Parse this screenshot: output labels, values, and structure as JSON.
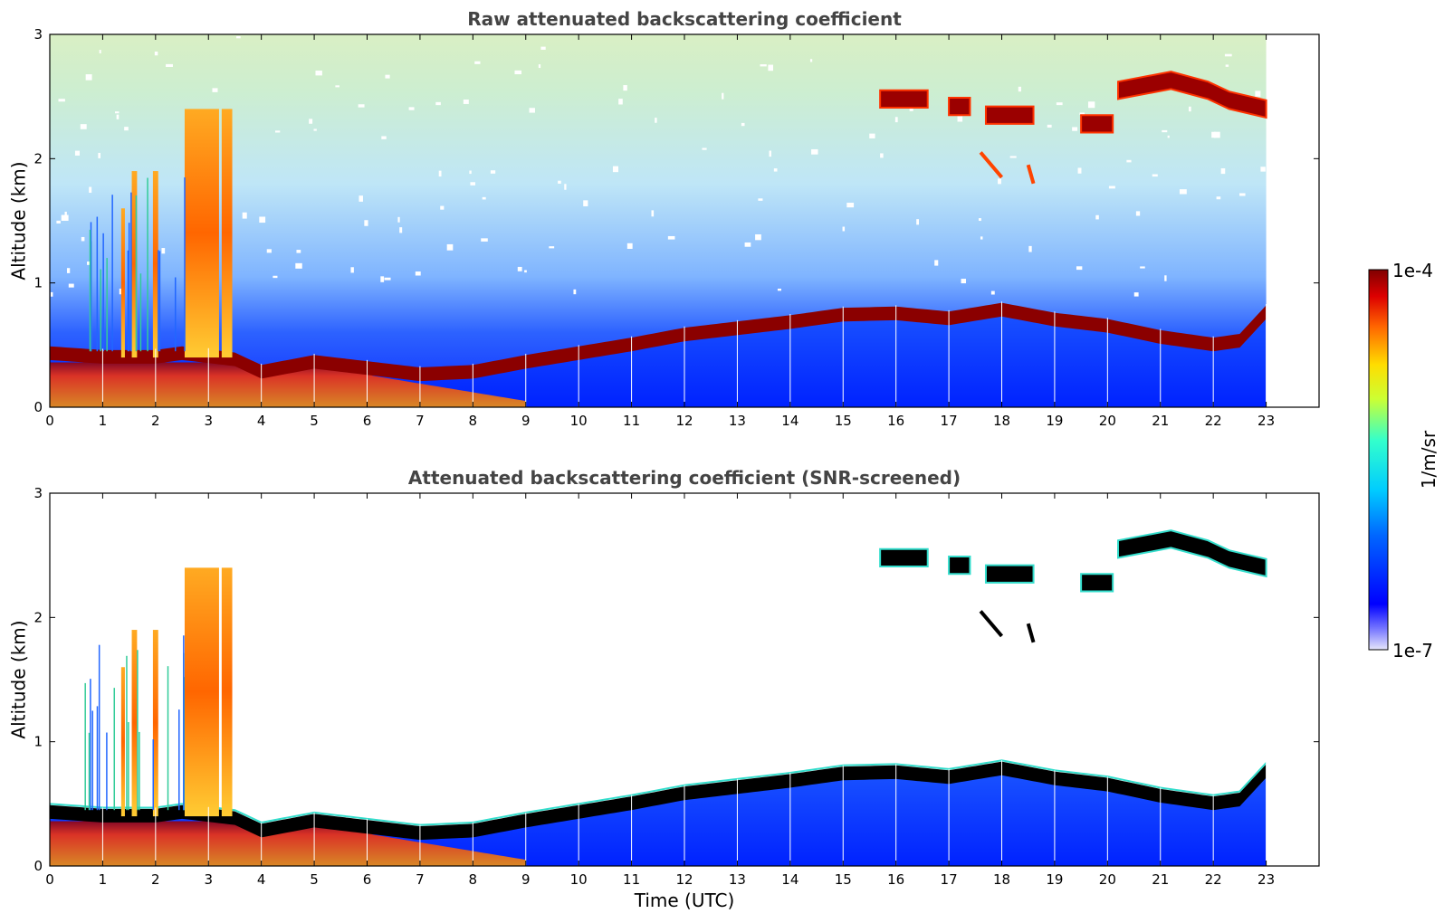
{
  "chart_data": [
    {
      "type": "heatmap",
      "title": "Raw attenuated backscattering coefficient",
      "xlabel": "",
      "ylabel": "Altitude (km)",
      "xlim": [
        0,
        24
      ],
      "ylim": [
        0,
        3
      ],
      "xticks": [
        "0",
        "1",
        "2",
        "3",
        "4",
        "5",
        "6",
        "7",
        "8",
        "9",
        "10",
        "11",
        "12",
        "13",
        "14",
        "15",
        "16",
        "17",
        "18",
        "19",
        "20",
        "21",
        "22",
        "23"
      ],
      "yticks": [
        "0",
        "1",
        "2",
        "3"
      ],
      "data_time_range": [
        0,
        23
      ],
      "layers": [
        {
          "name": "boundary layer top",
          "points": [
            [
              0,
              0.45
            ],
            [
              1,
              0.42
            ],
            [
              2,
              0.42
            ],
            [
              2.5,
              0.45
            ],
            [
              3.5,
              0.4
            ],
            [
              4,
              0.3
            ],
            [
              5,
              0.38
            ],
            [
              6,
              0.33
            ],
            [
              7,
              0.28
            ],
            [
              8,
              0.3
            ],
            [
              9,
              0.38
            ],
            [
              10,
              0.45
            ],
            [
              11,
              0.52
            ],
            [
              12,
              0.6
            ],
            [
              13,
              0.65
            ],
            [
              14,
              0.7
            ],
            [
              15,
              0.76
            ],
            [
              16,
              0.77
            ],
            [
              17,
              0.73
            ],
            [
              18,
              0.8
            ],
            [
              19,
              0.72
            ],
            [
              20,
              0.67
            ],
            [
              21,
              0.58
            ],
            [
              22,
              0.52
            ],
            [
              22.5,
              0.55
            ],
            [
              23,
              0.78
            ]
          ]
        },
        {
          "name": "elevated layer 1",
          "points": [
            [
              15.7,
              2.48
            ],
            [
              16.6,
              2.48
            ]
          ]
        },
        {
          "name": "elevated layer 2",
          "points": [
            [
              17,
              2.42
            ],
            [
              17.4,
              2.42
            ]
          ]
        },
        {
          "name": "elevated layer 3",
          "points": [
            [
              17.7,
              2.35
            ],
            [
              18.6,
              2.35
            ]
          ]
        },
        {
          "name": "elevated layer 4",
          "points": [
            [
              19.5,
              2.28
            ],
            [
              20.1,
              2.28
            ]
          ]
        },
        {
          "name": "elevated layer 5",
          "points": [
            [
              20.2,
              2.55
            ],
            [
              21.2,
              2.63
            ],
            [
              21.9,
              2.55
            ],
            [
              22.3,
              2.47
            ],
            [
              23,
              2.4
            ]
          ]
        }
      ],
      "colorscale": {
        "max_label": "1e-4",
        "min_label": "1e-7",
        "unit_label": "1/m/sr",
        "colormap": "jet"
      }
    },
    {
      "type": "heatmap",
      "title": "Attenuated backscattering coefficient (SNR-screened)",
      "xlabel": "Time (UTC)",
      "ylabel": "Altitude (km)",
      "xlim": [
        0,
        24
      ],
      "ylim": [
        0,
        3
      ],
      "xticks": [
        "0",
        "1",
        "2",
        "3",
        "4",
        "5",
        "6",
        "7",
        "8",
        "9",
        "10",
        "11",
        "12",
        "13",
        "14",
        "15",
        "16",
        "17",
        "18",
        "19",
        "20",
        "21",
        "22",
        "23"
      ],
      "yticks": [
        "0",
        "1",
        "2",
        "3"
      ],
      "data_time_range": [
        0,
        23
      ],
      "screened": true
    }
  ],
  "colors": {
    "title": "#444444",
    "saturated_screened": "#000000"
  }
}
